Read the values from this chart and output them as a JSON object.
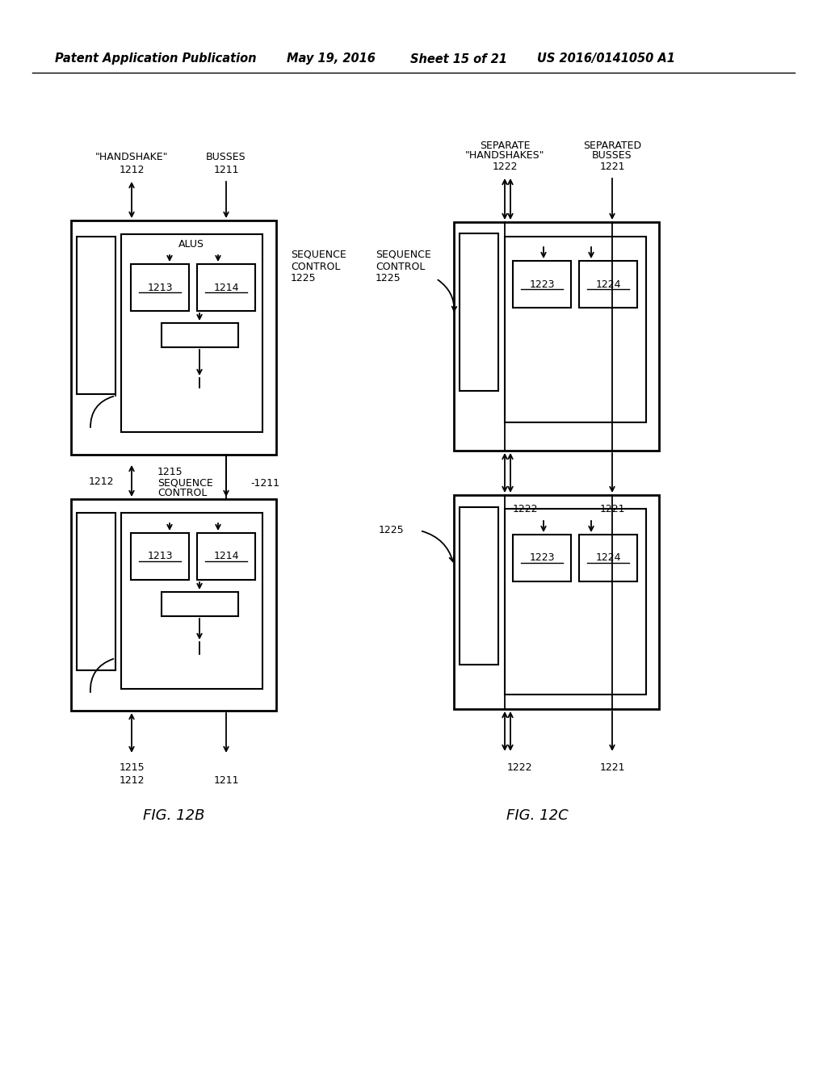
{
  "bg_color": "#ffffff",
  "line_color": "#000000",
  "header_text": "Patent Application Publication",
  "header_date": "May 19, 2016",
  "header_sheet": "Sheet 15 of 21",
  "header_patent": "US 2016/0141050 A1",
  "fig_label_b": "FIG. 12B",
  "fig_label_c": "FIG. 12C"
}
